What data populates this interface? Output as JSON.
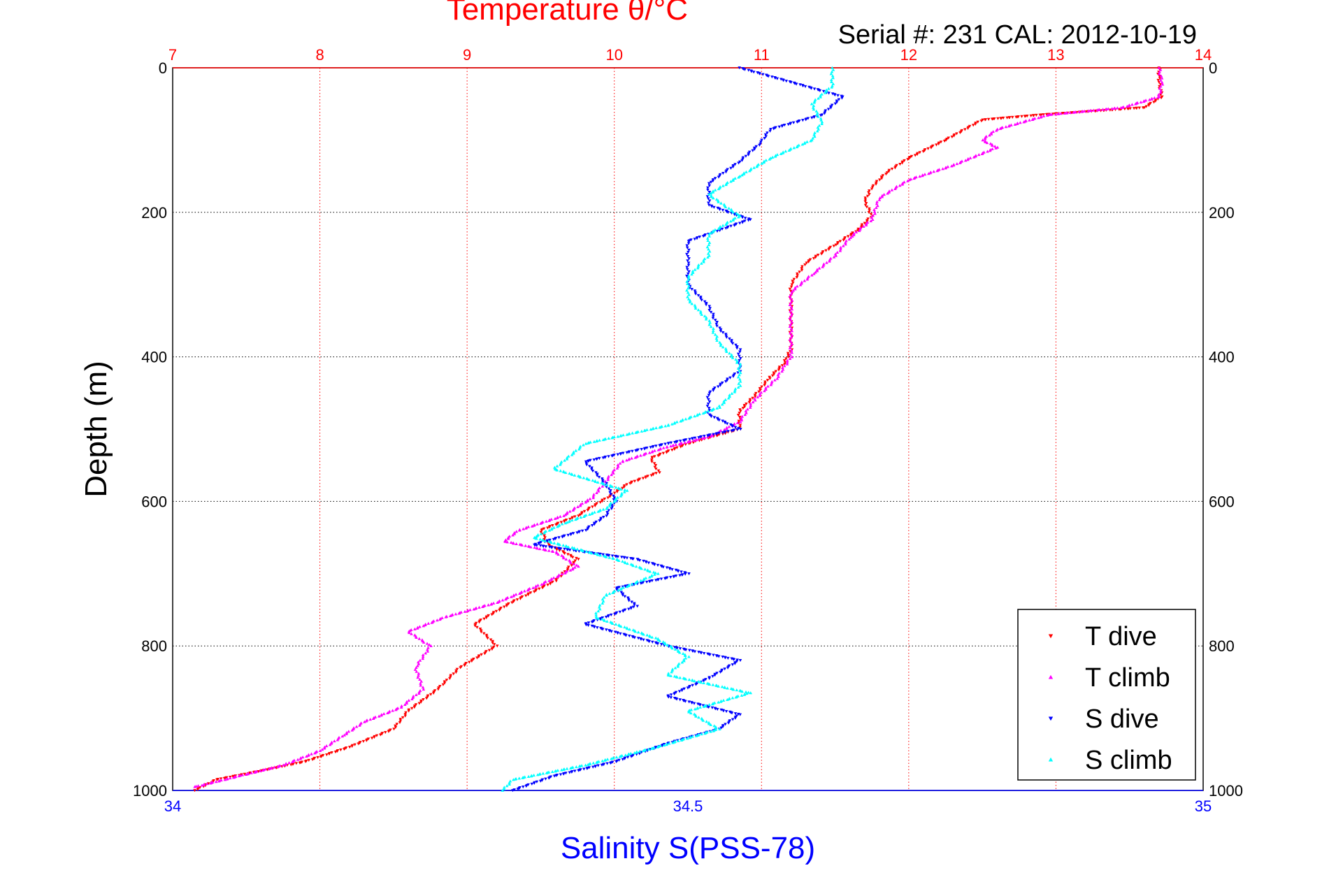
{
  "chart_data": {
    "type": "scatter",
    "title": "Temperature θ/°C",
    "annotation": "Serial #: 231  CAL: 2012-10-19",
    "ylabel": "Depth (m)",
    "xlabel": "Salinity S(PSS-78)",
    "top_axis": {
      "label": "Temperature θ/°C",
      "range": [
        7,
        14
      ],
      "ticks": [
        "7",
        "8",
        "9",
        "10",
        "11",
        "12",
        "13",
        "14"
      ],
      "color": "#ff0000"
    },
    "bottom_axis": {
      "label": "Salinity S(PSS-78)",
      "range": [
        34,
        35
      ],
      "ticks": [
        "34",
        "34.5",
        "35"
      ],
      "color": "#0000ff"
    },
    "y_axis": {
      "label": "Depth (m)",
      "range": [
        0,
        1000
      ],
      "reversed": true,
      "ticks": [
        "0",
        "200",
        "400",
        "600",
        "800",
        "1000"
      ]
    },
    "grid": true,
    "legend_position": "bottom-right",
    "series": [
      {
        "name": "T dive",
        "axis": "temperature",
        "color": "#ff0000",
        "marker": "triangle-down",
        "points": [
          [
            13.7,
            0
          ],
          [
            13.7,
            20
          ],
          [
            13.72,
            40
          ],
          [
            13.6,
            55
          ],
          [
            12.9,
            65
          ],
          [
            12.5,
            72
          ],
          [
            12.25,
            100
          ],
          [
            12.0,
            125
          ],
          [
            11.85,
            145
          ],
          [
            11.75,
            165
          ],
          [
            11.7,
            185
          ],
          [
            11.75,
            205
          ],
          [
            11.65,
            225
          ],
          [
            11.5,
            245
          ],
          [
            11.3,
            270
          ],
          [
            11.2,
            300
          ],
          [
            11.2,
            330
          ],
          [
            11.2,
            360
          ],
          [
            11.2,
            390
          ],
          [
            11.15,
            410
          ],
          [
            11.05,
            430
          ],
          [
            10.95,
            455
          ],
          [
            10.85,
            475
          ],
          [
            10.85,
            500
          ],
          [
            10.5,
            520
          ],
          [
            10.25,
            540
          ],
          [
            10.3,
            560
          ],
          [
            10.1,
            575
          ],
          [
            9.95,
            595
          ],
          [
            9.75,
            620
          ],
          [
            9.5,
            640
          ],
          [
            9.55,
            660
          ],
          [
            9.75,
            680
          ],
          [
            9.6,
            710
          ],
          [
            9.3,
            740
          ],
          [
            9.05,
            770
          ],
          [
            9.2,
            800
          ],
          [
            8.95,
            830
          ],
          [
            8.8,
            860
          ],
          [
            8.6,
            890
          ],
          [
            8.5,
            915
          ],
          [
            8.2,
            940
          ],
          [
            7.9,
            960
          ],
          [
            7.55,
            975
          ],
          [
            7.3,
            985
          ],
          [
            7.15,
            1000
          ]
        ]
      },
      {
        "name": "T climb",
        "axis": "temperature",
        "color": "#ff00ff",
        "marker": "triangle-up",
        "points": [
          [
            13.7,
            0
          ],
          [
            13.72,
            20
          ],
          [
            13.7,
            40
          ],
          [
            13.45,
            55
          ],
          [
            12.95,
            65
          ],
          [
            12.6,
            85
          ],
          [
            12.5,
            100
          ],
          [
            12.6,
            110
          ],
          [
            12.3,
            135
          ],
          [
            12.0,
            155
          ],
          [
            11.8,
            180
          ],
          [
            11.75,
            210
          ],
          [
            11.6,
            235
          ],
          [
            11.5,
            260
          ],
          [
            11.35,
            285
          ],
          [
            11.2,
            310
          ],
          [
            11.2,
            340
          ],
          [
            11.2,
            370
          ],
          [
            11.2,
            400
          ],
          [
            11.1,
            430
          ],
          [
            10.95,
            460
          ],
          [
            10.85,
            490
          ],
          [
            10.65,
            510
          ],
          [
            10.35,
            525
          ],
          [
            10.05,
            545
          ],
          [
            9.95,
            570
          ],
          [
            9.85,
            595
          ],
          [
            9.65,
            620
          ],
          [
            9.35,
            640
          ],
          [
            9.25,
            655
          ],
          [
            9.6,
            670
          ],
          [
            9.75,
            690
          ],
          [
            9.5,
            715
          ],
          [
            9.2,
            740
          ],
          [
            8.85,
            760
          ],
          [
            8.6,
            780
          ],
          [
            8.75,
            800
          ],
          [
            8.65,
            830
          ],
          [
            8.7,
            860
          ],
          [
            8.55,
            885
          ],
          [
            8.3,
            905
          ],
          [
            8.15,
            925
          ],
          [
            8.0,
            945
          ],
          [
            7.75,
            965
          ],
          [
            7.45,
            980
          ],
          [
            7.15,
            995
          ]
        ]
      },
      {
        "name": "S dive",
        "axis": "salinity",
        "color": "#0000ff",
        "marker": "triangle-down",
        "points": [
          [
            34.55,
            0
          ],
          [
            34.6,
            20
          ],
          [
            34.65,
            40
          ],
          [
            34.63,
            65
          ],
          [
            34.58,
            85
          ],
          [
            34.57,
            105
          ],
          [
            34.55,
            130
          ],
          [
            34.52,
            160
          ],
          [
            34.52,
            190
          ],
          [
            34.56,
            210
          ],
          [
            34.5,
            240
          ],
          [
            34.5,
            270
          ],
          [
            34.5,
            300
          ],
          [
            34.52,
            330
          ],
          [
            34.53,
            360
          ],
          [
            34.55,
            390
          ],
          [
            34.55,
            420
          ],
          [
            34.52,
            450
          ],
          [
            34.52,
            480
          ],
          [
            34.55,
            500
          ],
          [
            34.48,
            520
          ],
          [
            34.4,
            545
          ],
          [
            34.42,
            575
          ],
          [
            34.43,
            600
          ],
          [
            34.42,
            620
          ],
          [
            34.4,
            640
          ],
          [
            34.35,
            660
          ],
          [
            34.45,
            680
          ],
          [
            34.5,
            700
          ],
          [
            34.43,
            720
          ],
          [
            34.45,
            745
          ],
          [
            34.4,
            770
          ],
          [
            34.48,
            800
          ],
          [
            34.55,
            820
          ],
          [
            34.52,
            845
          ],
          [
            34.48,
            870
          ],
          [
            34.55,
            895
          ],
          [
            34.53,
            915
          ],
          [
            34.48,
            935
          ],
          [
            34.43,
            960
          ],
          [
            34.37,
            980
          ],
          [
            34.33,
            1000
          ]
        ]
      },
      {
        "name": "S climb",
        "axis": "salinity",
        "color": "#00ffff",
        "marker": "triangle-up",
        "points": [
          [
            34.64,
            0
          ],
          [
            34.64,
            25
          ],
          [
            34.62,
            50
          ],
          [
            34.63,
            75
          ],
          [
            34.62,
            100
          ],
          [
            34.58,
            125
          ],
          [
            34.55,
            150
          ],
          [
            34.52,
            175
          ],
          [
            34.55,
            205
          ],
          [
            34.52,
            230
          ],
          [
            34.52,
            260
          ],
          [
            34.5,
            290
          ],
          [
            34.5,
            320
          ],
          [
            34.52,
            350
          ],
          [
            34.53,
            380
          ],
          [
            34.55,
            410
          ],
          [
            34.55,
            440
          ],
          [
            34.53,
            470
          ],
          [
            34.48,
            495
          ],
          [
            34.4,
            520
          ],
          [
            34.37,
            555
          ],
          [
            34.44,
            585
          ],
          [
            34.42,
            610
          ],
          [
            34.38,
            630
          ],
          [
            34.35,
            650
          ],
          [
            34.43,
            680
          ],
          [
            34.47,
            700
          ],
          [
            34.42,
            730
          ],
          [
            34.41,
            760
          ],
          [
            34.47,
            790
          ],
          [
            34.5,
            815
          ],
          [
            34.48,
            840
          ],
          [
            34.56,
            865
          ],
          [
            34.5,
            890
          ],
          [
            34.53,
            915
          ],
          [
            34.47,
            940
          ],
          [
            34.4,
            965
          ],
          [
            34.33,
            985
          ],
          [
            34.32,
            1000
          ]
        ]
      }
    ]
  },
  "legend": {
    "items": [
      {
        "label": "T dive",
        "color": "#ff0000",
        "marker": "triangle-down"
      },
      {
        "label": "T climb",
        "color": "#ff00ff",
        "marker": "triangle-up"
      },
      {
        "label": "S dive",
        "color": "#0000ff",
        "marker": "triangle-down"
      },
      {
        "label": "S climb",
        "color": "#00ffff",
        "marker": "triangle-up"
      }
    ]
  }
}
